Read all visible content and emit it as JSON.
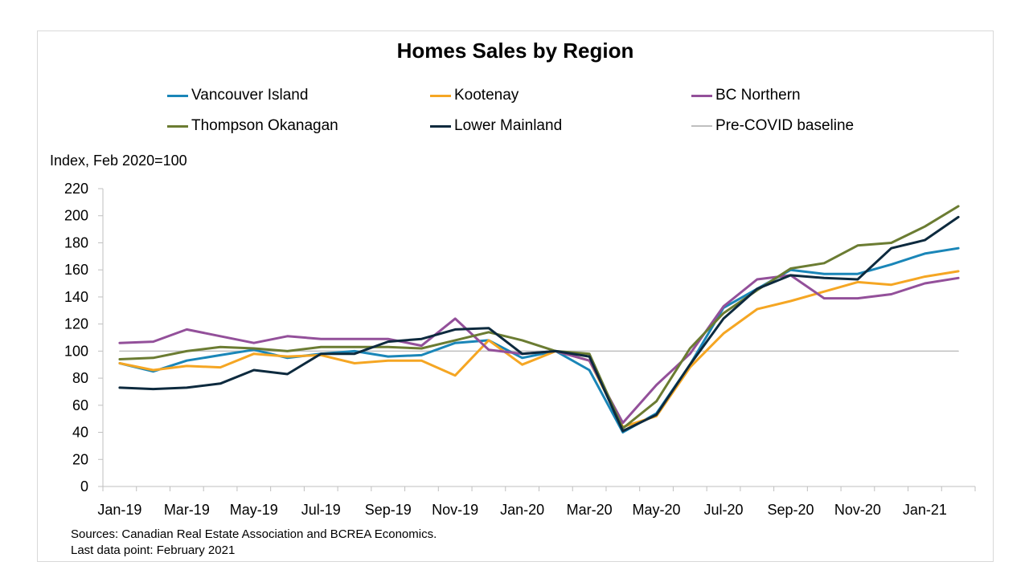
{
  "chart_data": {
    "type": "line",
    "title": "Homes Sales by Region",
    "ylabel": "Index, Feb 2020=100",
    "xlabel": "",
    "ylim": [
      0,
      220
    ],
    "y_ticks": [
      0,
      20,
      40,
      60,
      80,
      100,
      120,
      140,
      160,
      180,
      200,
      220
    ],
    "x": [
      "Jan-19",
      "Feb-19",
      "Mar-19",
      "Apr-19",
      "May-19",
      "Jun-19",
      "Jul-19",
      "Aug-19",
      "Sep-19",
      "Oct-19",
      "Nov-19",
      "Dec-19",
      "Jan-20",
      "Feb-20",
      "Mar-20",
      "Apr-20",
      "May-20",
      "Jun-20",
      "Jul-20",
      "Aug-20",
      "Sep-20",
      "Oct-20",
      "Nov-20",
      "Dec-20",
      "Jan-21",
      "Feb-21"
    ],
    "x_tick_labels": [
      "Jan-19",
      "Mar-19",
      "May-19",
      "Jul-19",
      "Sep-19",
      "Nov-19",
      "Jan-20",
      "Mar-20",
      "May-20",
      "Jul-20",
      "Sep-20",
      "Nov-20",
      "Jan-21"
    ],
    "grid": false,
    "legend_position": "top",
    "series": [
      {
        "name": "Vancouver Island",
        "color": "#1a86b8",
        "values": [
          91,
          85,
          93,
          97,
          101,
          95,
          98,
          100,
          96,
          97,
          106,
          108,
          95,
          100,
          86,
          40,
          54,
          90,
          132,
          146,
          160,
          157,
          157,
          164,
          172,
          176
        ]
      },
      {
        "name": "Kootenay",
        "color": "#f5a623",
        "values": [
          91,
          86,
          89,
          88,
          98,
          96,
          97,
          91,
          93,
          93,
          82,
          108,
          90,
          100,
          93,
          44,
          52,
          88,
          113,
          131,
          137,
          144,
          151,
          149,
          155,
          159
        ]
      },
      {
        "name": "BC Northern",
        "color": "#93509a",
        "values": [
          106,
          107,
          116,
          111,
          106,
          111,
          109,
          109,
          109,
          104,
          124,
          101,
          98,
          100,
          93,
          47,
          75,
          98,
          133,
          153,
          156,
          139,
          139,
          142,
          150,
          154
        ]
      },
      {
        "name": "Thompson Okanagan",
        "color": "#6b7c32",
        "values": [
          94,
          95,
          100,
          103,
          102,
          100,
          103,
          103,
          103,
          102,
          108,
          114,
          108,
          100,
          98,
          43,
          63,
          102,
          128,
          145,
          161,
          165,
          178,
          180,
          192,
          207
        ]
      },
      {
        "name": "Lower Mainland",
        "color": "#0d2a3e",
        "values": [
          73,
          72,
          73,
          76,
          86,
          83,
          98,
          98,
          107,
          109,
          116,
          117,
          98,
          100,
          96,
          41,
          53,
          90,
          124,
          146,
          156,
          154,
          153,
          176,
          182,
          199
        ]
      },
      {
        "name": "Pre-COVID baseline",
        "color": "#bfbfbf",
        "values": [
          100,
          100,
          100,
          100,
          100,
          100,
          100,
          100,
          100,
          100,
          100,
          100,
          100,
          100,
          100,
          100,
          100,
          100,
          100,
          100,
          100,
          100,
          100,
          100,
          100,
          100
        ]
      }
    ]
  },
  "footer": {
    "sources": "Sources: Canadian Real Estate Association and BCREA Economics.",
    "last_point": "Last data point: February 2021"
  }
}
